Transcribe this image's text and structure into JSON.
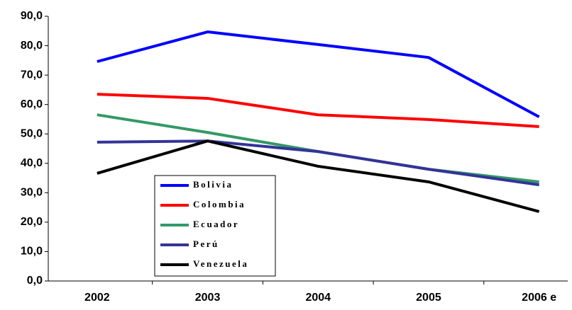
{
  "chart_data": {
    "type": "line",
    "categories": [
      "2002",
      "2003",
      "2004",
      "2005",
      "2006 e"
    ],
    "series": [
      {
        "name": "Bolivia",
        "color": "#0000ff",
        "values": [
          74.6,
          84.7,
          80.4,
          76.0,
          55.8
        ]
      },
      {
        "name": "Colombia",
        "color": "#ff0000",
        "values": [
          63.5,
          62.1,
          56.5,
          54.9,
          52.5
        ]
      },
      {
        "name": "Ecuador",
        "color": "#339966",
        "values": [
          56.5,
          50.5,
          44.0,
          38.0,
          33.7
        ]
      },
      {
        "name": "Perú",
        "color": "#333399",
        "values": [
          47.2,
          47.6,
          44.0,
          38.0,
          32.7
        ]
      },
      {
        "name": "Venezuela",
        "color": "#000000",
        "values": [
          36.6,
          47.6,
          39.0,
          33.7,
          23.6
        ]
      }
    ],
    "ylim": [
      0,
      90
    ],
    "yticks": [
      {
        "value": 0,
        "label": "0,0"
      },
      {
        "value": 10,
        "label": "10,0"
      },
      {
        "value": 20,
        "label": "20,0"
      },
      {
        "value": 30,
        "label": "30,0"
      },
      {
        "value": 40,
        "label": "40,0"
      },
      {
        "value": 50,
        "label": "50,0"
      },
      {
        "value": 60,
        "label": "60,0"
      },
      {
        "value": 70,
        "label": "70,0"
      },
      {
        "value": 80,
        "label": "80,0"
      },
      {
        "value": 90,
        "label": "90,0"
      }
    ]
  }
}
